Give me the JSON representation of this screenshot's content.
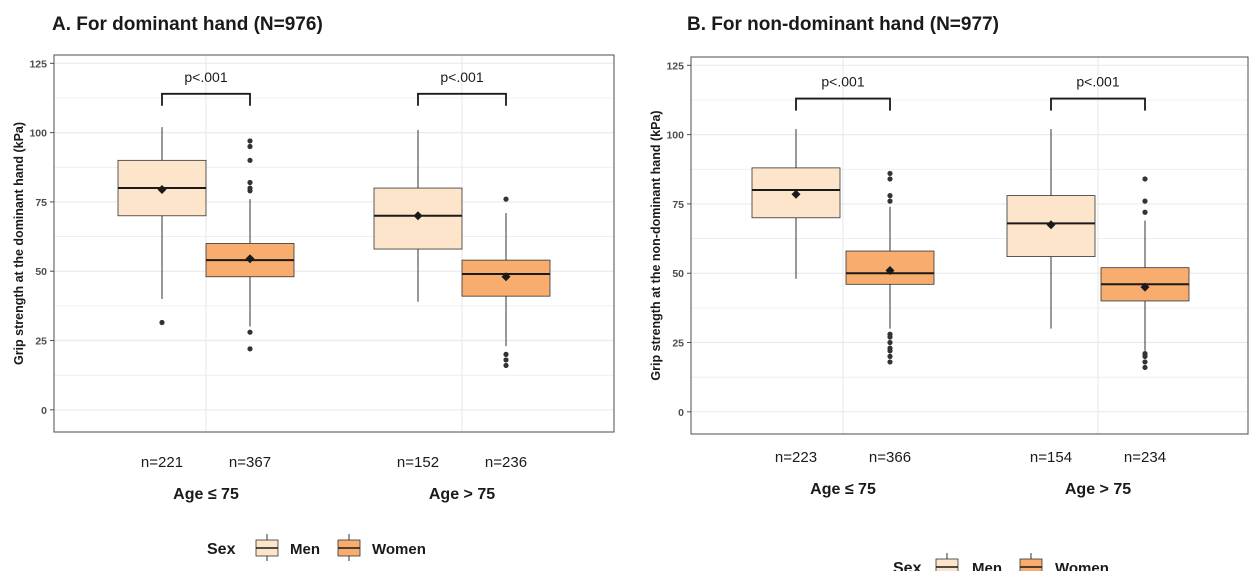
{
  "chart_data": [
    {
      "type": "box",
      "title": "A. For dominant hand (N=976)",
      "ylabel": "Grip strength at the dominant hand (kPa)",
      "ylim": [
        -8,
        128
      ],
      "yticks": [
        0,
        25,
        50,
        75,
        100,
        125
      ],
      "grid": true,
      "groups": [
        {
          "label": "Age ≤ 75",
          "pvalue": "p<.001",
          "bracket_y": 114,
          "boxes": [
            {
              "series": "Men",
              "n": "n=221",
              "whisker_low": 40,
              "q1": 70,
              "median": 80,
              "q3": 90,
              "whisker_high": 102,
              "mean": 79.5,
              "outliers": [
                31.5
              ]
            },
            {
              "series": "Women",
              "n": "n=367",
              "whisker_low": 30,
              "q1": 48,
              "median": 54,
              "q3": 60,
              "whisker_high": 76,
              "mean": 54.5,
              "outliers": [
                22,
                28,
                79,
                80,
                82,
                90,
                95,
                97
              ]
            }
          ]
        },
        {
          "label": "Age > 75",
          "pvalue": "p<.001",
          "bracket_y": 114,
          "boxes": [
            {
              "series": "Men",
              "n": "n=152",
              "whisker_low": 39,
              "q1": 58,
              "median": 70,
              "q3": 80,
              "whisker_high": 101,
              "mean": 70,
              "outliers": []
            },
            {
              "series": "Women",
              "n": "n=236",
              "whisker_low": 23,
              "q1": 41,
              "median": 49,
              "q3": 54,
              "whisker_high": 71,
              "mean": 48,
              "outliers": [
                16,
                18,
                20,
                76
              ]
            }
          ]
        }
      ]
    },
    {
      "type": "box",
      "title": "B. For non-dominant hand (N=977)",
      "ylabel": "Grip strength at the non-dominant hand (kPa)",
      "ylim": [
        -8,
        128
      ],
      "yticks": [
        0,
        25,
        50,
        75,
        100,
        125
      ],
      "grid": true,
      "groups": [
        {
          "label": "Age ≤ 75",
          "pvalue": "p<.001",
          "bracket_y": 113,
          "boxes": [
            {
              "series": "Men",
              "n": "n=223",
              "whisker_low": 48,
              "q1": 70,
              "median": 80,
              "q3": 88,
              "whisker_high": 102,
              "mean": 78.5,
              "outliers": []
            },
            {
              "series": "Women",
              "n": "n=366",
              "whisker_low": 30,
              "q1": 46,
              "median": 50,
              "q3": 58,
              "whisker_high": 74,
              "mean": 51,
              "outliers": [
                18,
                20,
                22,
                23,
                25,
                27,
                28,
                76,
                78,
                84,
                86
              ]
            }
          ]
        },
        {
          "label": "Age > 75",
          "pvalue": "p<.001",
          "bracket_y": 113,
          "boxes": [
            {
              "series": "Men",
              "n": "n=154",
              "whisker_low": 30,
              "q1": 56,
              "median": 68,
              "q3": 78,
              "whisker_high": 102,
              "mean": 67.5,
              "outliers": []
            },
            {
              "series": "Women",
              "n": "n=234",
              "whisker_low": 22,
              "q1": 40,
              "median": 46,
              "q3": 52,
              "whisker_high": 69,
              "mean": 45,
              "outliers": [
                16,
                18,
                20,
                21,
                72,
                76,
                84
              ]
            }
          ]
        }
      ]
    }
  ],
  "legend": {
    "title": "Sex",
    "items": [
      {
        "label": "Men",
        "color": "#fde5cb"
      },
      {
        "label": "Women",
        "color": "#f8ad6e"
      }
    ]
  },
  "colors": {
    "Men": "#fde5cb",
    "Women": "#f8ad6e",
    "grid": "#ebebeb",
    "axis": "#4d4d4d"
  }
}
